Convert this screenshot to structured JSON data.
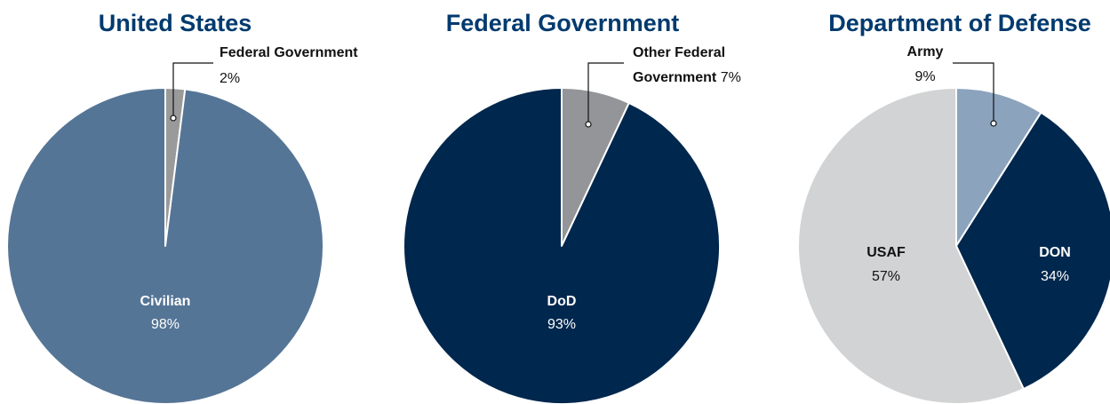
{
  "chart_data": [
    {
      "type": "pie",
      "title": "United States",
      "slices": [
        {
          "label": "Federal Government",
          "value": 2,
          "value_label": "2%",
          "color": "#9a9a9a"
        },
        {
          "label": "Civilian",
          "value": 98,
          "value_label": "98%",
          "color": "#557596"
        }
      ]
    },
    {
      "type": "pie",
      "title": "Federal Government",
      "slices": [
        {
          "label": "Other Federal Government",
          "label_lines": [
            "Other Federal",
            "Government"
          ],
          "value": 7,
          "value_label": "7%",
          "color": "#939598"
        },
        {
          "label": "DoD",
          "value": 93,
          "value_label": "93%",
          "color": "#00274d"
        }
      ]
    },
    {
      "type": "pie",
      "title": "Department of Defense",
      "slices": [
        {
          "label": "Army",
          "value": 9,
          "value_label": "9%",
          "color": "#8ba3bd"
        },
        {
          "label": "DON",
          "value": 34,
          "value_label": "34%",
          "color": "#00274d"
        },
        {
          "label": "USAF",
          "value": 57,
          "value_label": "57%",
          "color": "#d1d3d4"
        }
      ]
    }
  ]
}
